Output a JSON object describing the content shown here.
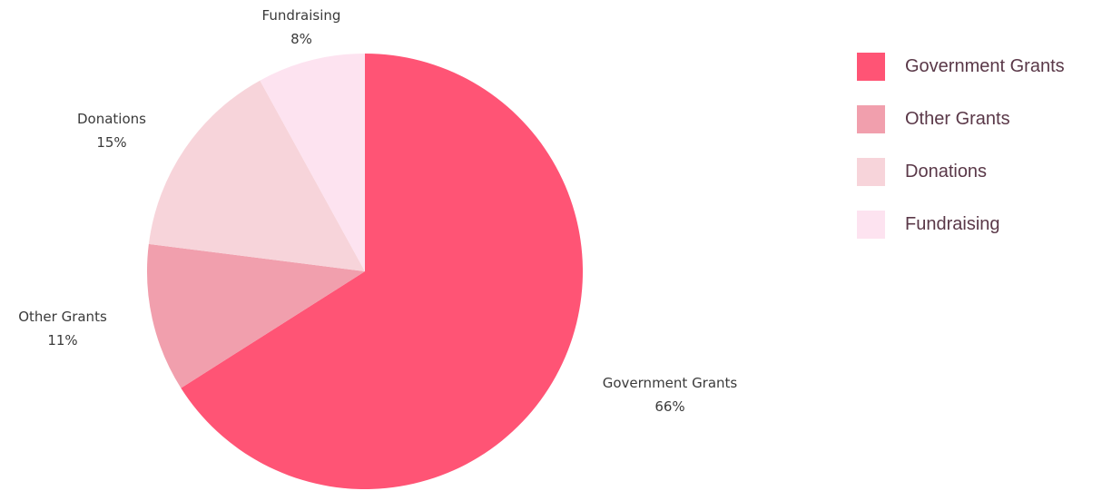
{
  "chart_data": {
    "type": "pie",
    "categories": [
      "Government Grants",
      "Other Grants",
      "Donations",
      "Fundraising"
    ],
    "values": [
      66,
      11,
      15,
      8
    ],
    "value_labels": [
      "66%",
      "11%",
      "15%",
      "8%"
    ],
    "colors": [
      "#ff5475",
      "#f19fad",
      "#f7d4da",
      "#fde3f0"
    ],
    "start_angle_deg": 0,
    "direction": "clockwise",
    "legend": "right"
  },
  "legend": {
    "items": [
      {
        "label": "Government Grants",
        "color": "#ff5475"
      },
      {
        "label": "Other Grants",
        "color": "#f19fad"
      },
      {
        "label": "Donations",
        "color": "#f7d4da"
      },
      {
        "label": "Fundraising",
        "color": "#fde3f0"
      }
    ]
  }
}
